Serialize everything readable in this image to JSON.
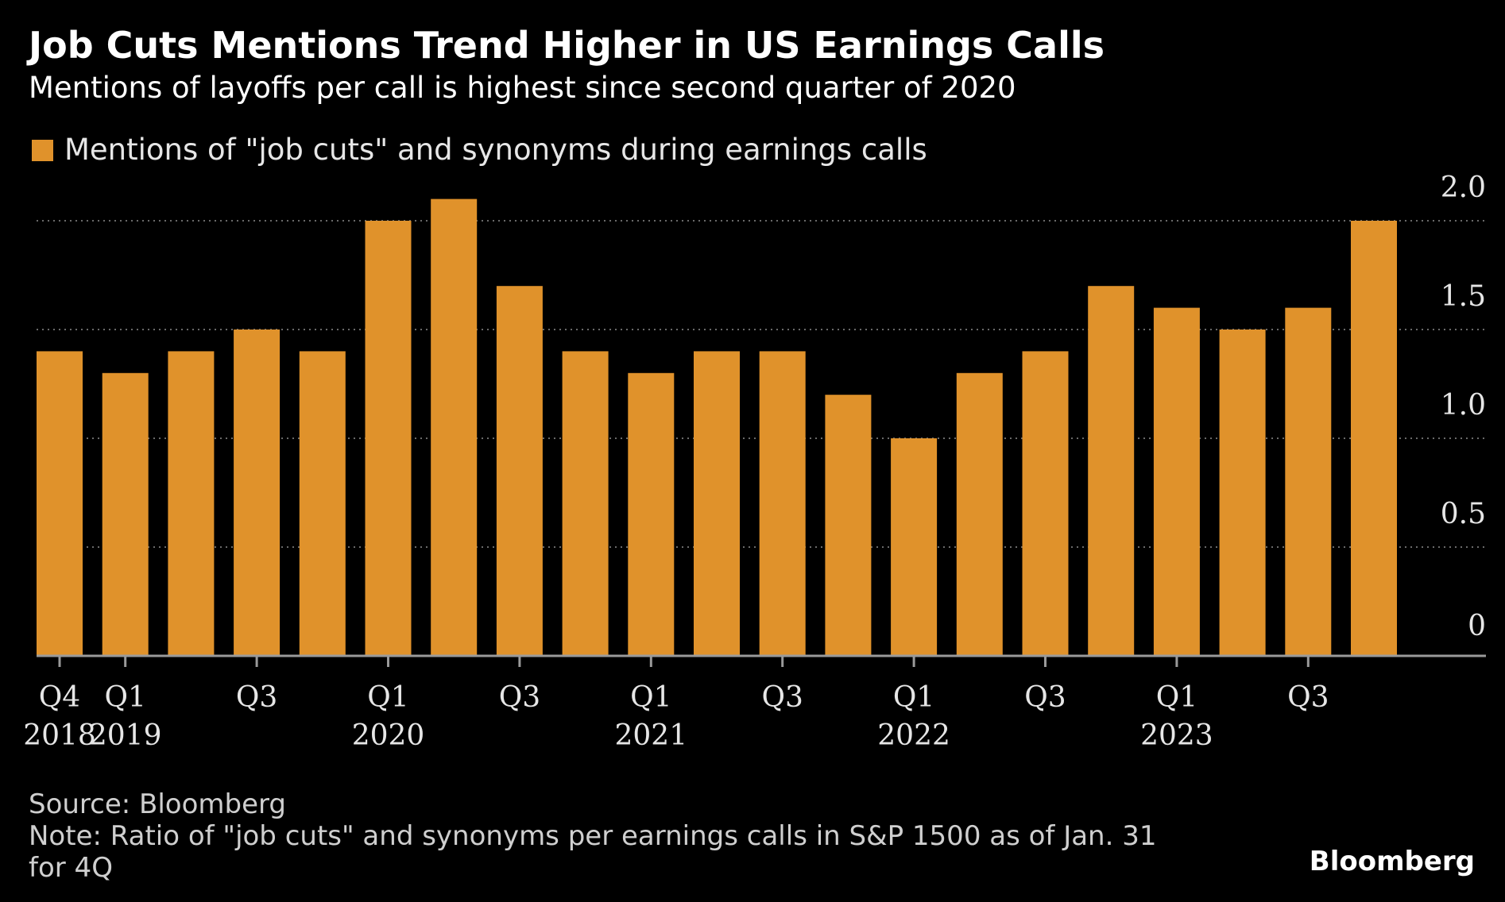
{
  "chart_data": {
    "type": "bar",
    "title": "Job Cuts Mentions Trend Higher in US Earnings Calls",
    "subtitle": "Mentions of layoffs per call is highest since second quarter of 2020",
    "series": [
      {
        "name": "Mentions of \"job cuts\" and synonyms during earnings calls",
        "color": "#e0922b",
        "values": [
          1.4,
          1.3,
          1.4,
          1.5,
          1.4,
          2.0,
          2.1,
          1.7,
          1.4,
          1.3,
          1.4,
          1.4,
          1.2,
          1.0,
          1.3,
          1.4,
          1.7,
          1.6,
          1.5,
          1.6,
          2.0
        ]
      }
    ],
    "categories": [
      "Q4 2018",
      "Q1 2019",
      "Q2 2019",
      "Q3 2019",
      "Q4 2019",
      "Q1 2020",
      "Q2 2020",
      "Q3 2020",
      "Q4 2020",
      "Q1 2021",
      "Q2 2021",
      "Q3 2021",
      "Q4 2021",
      "Q1 2022",
      "Q2 2022",
      "Q3 2022",
      "Q4 2022",
      "Q1 2023",
      "Q2 2023",
      "Q3 2023",
      "Q4 2023"
    ],
    "x_tick_labels": [
      {
        "index": 0,
        "quarter": "Q4",
        "year": "2018"
      },
      {
        "index": 1,
        "quarter": "Q1",
        "year": "2019"
      },
      {
        "index": 3,
        "quarter": "Q3",
        "year": ""
      },
      {
        "index": 5,
        "quarter": "Q1",
        "year": "2020"
      },
      {
        "index": 7,
        "quarter": "Q3",
        "year": ""
      },
      {
        "index": 9,
        "quarter": "Q1",
        "year": "2021"
      },
      {
        "index": 11,
        "quarter": "Q3",
        "year": ""
      },
      {
        "index": 13,
        "quarter": "Q1",
        "year": "2022"
      },
      {
        "index": 15,
        "quarter": "Q3",
        "year": ""
      },
      {
        "index": 17,
        "quarter": "Q1",
        "year": "2023"
      },
      {
        "index": 19,
        "quarter": "Q3",
        "year": ""
      }
    ],
    "y_ticks": [
      {
        "value": 0,
        "label": "0"
      },
      {
        "value": 0.5,
        "label": "0.5"
      },
      {
        "value": 1.0,
        "label": "1.0"
      },
      {
        "value": 1.5,
        "label": "1.5"
      },
      {
        "value": 2.0,
        "label": "2.0"
      }
    ],
    "ylim": [
      0,
      2.0
    ],
    "y_axis_side": "right",
    "grid": true,
    "legend_position": "top-left",
    "xlabel": "",
    "ylabel": ""
  },
  "colors": {
    "background": "#000000",
    "bar": "#e0922b",
    "grid": "#6a6a6a",
    "axis": "#9a9a9a",
    "text": "#ffffff",
    "muted_text": "#cfcfcf"
  },
  "footer": {
    "source": "Source: Bloomberg",
    "note_line1": "Note: Ratio of \"job cuts\" and synonyms per earnings calls in S&P 1500 as of Jan. 31",
    "note_line2": "for 4Q"
  },
  "brand": "Bloomberg"
}
